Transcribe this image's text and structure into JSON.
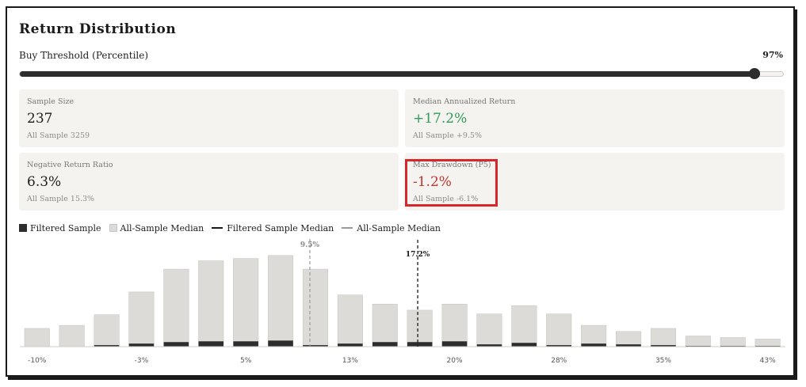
{
  "panel": {
    "title": "Return Distribution"
  },
  "slider": {
    "label": "Buy Threshold (Percentile)",
    "value_text": "97%",
    "value": 0.97
  },
  "metrics": [
    {
      "label": "Sample Size",
      "value": "237",
      "sub": "All Sample 3259",
      "tone": "neutral"
    },
    {
      "label": "Median Annualized Return",
      "value": "+17.2%",
      "sub": "All Sample +9.5%",
      "tone": "positive"
    },
    {
      "label": "Negative Return Ratio",
      "value": "6.3%",
      "sub": "All Sample 15.3%",
      "tone": "neutral"
    },
    {
      "label": "Max Drawdown (P5)",
      "value": "-1.2%",
      "sub": "All Sample -6.1%",
      "tone": "negative"
    }
  ],
  "legend": [
    {
      "label": "Filtered Sample",
      "swatch": "dark-square"
    },
    {
      "label": "All-Sample Median",
      "swatch": "light-square"
    },
    {
      "label": "Filtered Sample Median",
      "swatch": "dark-line"
    },
    {
      "label": "All-Sample Median",
      "swatch": "gray-line"
    }
  ],
  "colors": {
    "filtered": "#2d2d2d",
    "all_sample": "#dcdbd7",
    "positive": "#2f9c5a",
    "negative": "#c43531",
    "highlight": "#d8262a"
  },
  "chart_data": {
    "type": "bar",
    "x_tick_labels": [
      "-10%",
      "-3%",
      "5%",
      "13%",
      "20%",
      "28%",
      "35%",
      "43%"
    ],
    "series": [
      {
        "name": "All-Sample Median",
        "values": [
          24,
          28,
          42,
          72,
          102,
          113,
          116,
          120,
          102,
          68,
          56,
          48,
          56,
          43,
          54,
          43,
          28,
          20,
          24,
          14,
          12,
          10
        ]
      },
      {
        "name": "Filtered Sample",
        "values": [
          0,
          0,
          2,
          4,
          6,
          7,
          7,
          8,
          2,
          4,
          6,
          6,
          7,
          3,
          5,
          2,
          4,
          3,
          2,
          1,
          1,
          1
        ]
      }
    ],
    "markers": [
      {
        "label": "9.5%",
        "bin": 8.2,
        "style": "dashed-gray"
      },
      {
        "label": "17.2%",
        "bin": 11.3,
        "style": "dashed-dark"
      }
    ],
    "ylim": [
      0,
      125
    ]
  }
}
